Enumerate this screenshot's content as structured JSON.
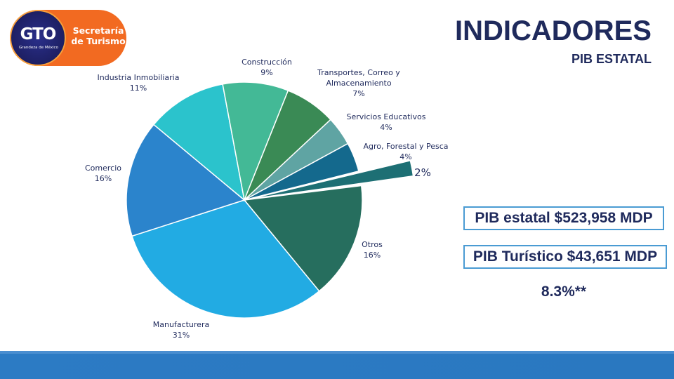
{
  "logo": {
    "mark": "GTO",
    "tagline": "Grandeza de México",
    "line1": "Secretaría",
    "line2": "de Turismo"
  },
  "header": {
    "title": "INDICADORES",
    "subtitle": "PIB ESTATAL"
  },
  "info": {
    "pib_estatal": "PIB estatal $523,958 MDP",
    "pib_turistico": "PIB Turístico $43,651 MDP",
    "share": "8.3%**"
  },
  "colors": {
    "title": "#1f2a5c",
    "footer": "#2c7bc4"
  },
  "chart_data": {
    "type": "pie",
    "slices": [
      {
        "name": "Otros",
        "value": 16,
        "label": "16%",
        "color": "#266e5e"
      },
      {
        "name": "Manufacturera",
        "value": 31,
        "label": "31%",
        "color": "#22abe3"
      },
      {
        "name": "Comercio",
        "value": 16,
        "label": "16%",
        "color": "#2b84cc"
      },
      {
        "name": "Industria Inmobiliaria",
        "value": 11,
        "label": "11%",
        "color": "#2bc3cc"
      },
      {
        "name": "Construcción",
        "value": 9,
        "label": "9%",
        "color": "#43b996"
      },
      {
        "name": "Transportes, Correo y Almacenamiento",
        "value": 7,
        "label": "7%",
        "color": "#3a8a55"
      },
      {
        "name": "Servicios Educativos",
        "value": 4,
        "label": "4%",
        "color": "#5fa4a3"
      },
      {
        "name": "Agro, Forestal y Pesca",
        "value": 4,
        "label": "4%",
        "color": "#14698d"
      },
      {
        "name": "",
        "value": 2,
        "label": "2%",
        "color": "#1d6f74",
        "exploded": true
      }
    ]
  }
}
